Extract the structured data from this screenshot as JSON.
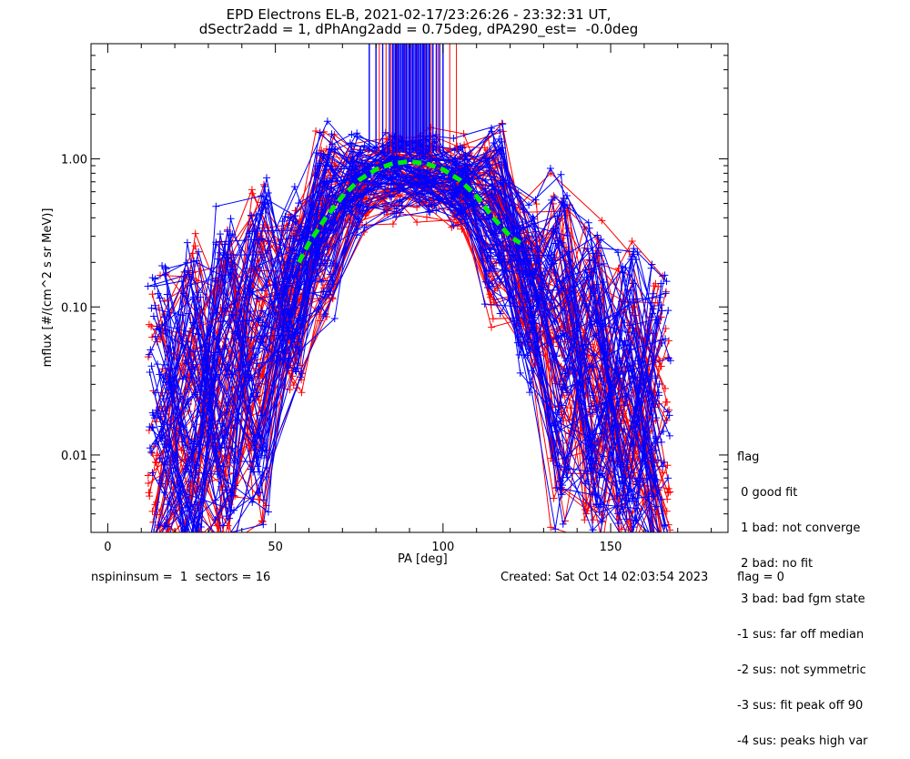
{
  "title_line1": "EPD Electrons EL-B, 2021-02-17/23:26:26 - 23:32:31 UT,",
  "title_line2": "dSectr2add = 1, dPhAng2add = 0.75deg, dPA290_est=  -0.0deg",
  "footer": {
    "left": "nspininsum =  1  sectors = 16",
    "created": "Created: Sat Oct 14 02:03:54 2023",
    "flag": "flag = 0"
  },
  "legend": {
    "title": "flag",
    "items": [
      " 0 good fit",
      " 1 bad: not converge",
      " 2 bad: no fit",
      " 3 bad: bad fgm state",
      "-1 sus: far off median",
      "-2 sus: not symmetric",
      "-3 sus: fit peak off 90",
      "-4 sus: peaks high var"
    ]
  },
  "chart_data": {
    "type": "line",
    "xlabel": "PA [deg]",
    "ylabel": "mflux [#/(cm^2 s sr MeV)]",
    "xlim": [
      -5,
      185
    ],
    "ylim": [
      0.003,
      6
    ],
    "yscale": "log",
    "xticks": [
      "0",
      "50",
      "100",
      "150"
    ],
    "yticks": [
      "0.01",
      "0.10",
      "1.00"
    ],
    "colors": {
      "series_a": "#ff0000",
      "series_b": "#0000ff",
      "fit": "#00ee00"
    },
    "fit_curve": {
      "x": [
        57,
        60,
        65,
        70,
        75,
        80,
        85,
        90,
        95,
        100,
        105,
        110,
        115,
        120,
        123
      ],
      "y": [
        0.2,
        0.27,
        0.4,
        0.56,
        0.72,
        0.85,
        0.93,
        0.96,
        0.93,
        0.85,
        0.72,
        0.56,
        0.4,
        0.3,
        0.27
      ]
    },
    "series_profile": {
      "x": [
        15,
        25,
        35,
        45,
        55,
        65,
        75,
        85,
        95,
        105,
        115,
        125,
        135,
        145,
        155,
        165
      ],
      "y": [
        0.015,
        0.022,
        0.035,
        0.06,
        0.15,
        0.45,
        0.8,
        0.92,
        0.92,
        0.8,
        0.45,
        0.15,
        0.06,
        0.035,
        0.022,
        0.015
      ]
    },
    "n_curves": {
      "red": 60,
      "blue": 70
    },
    "spikes": {
      "x_blue": [
        78,
        80,
        82,
        84,
        85,
        86,
        87,
        88,
        89,
        90,
        91,
        92,
        93,
        94,
        95,
        96,
        97,
        98,
        99,
        100
      ],
      "x_red": [
        81,
        83,
        84.5,
        86.5,
        88.5,
        90.5,
        92.5,
        94.5,
        96.5,
        98.5,
        102,
        104
      ]
    }
  }
}
